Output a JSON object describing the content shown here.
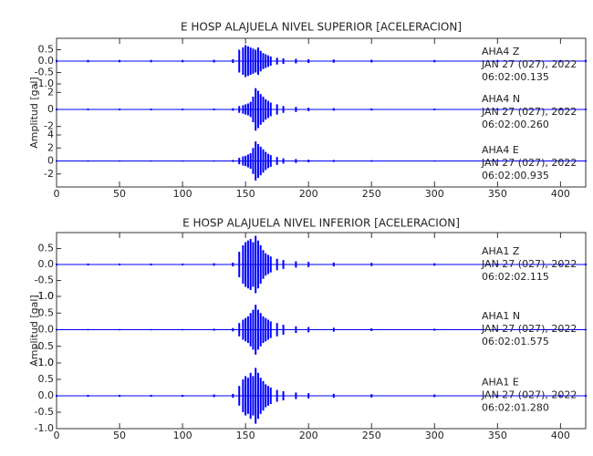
{
  "chart_data": [
    {
      "type": "seismogram",
      "title": "E HOSP ALAJUELA NIVEL SUPERIOR [ACELERACION]",
      "y_label": "Amplitud [gal]",
      "xlim": [
        0,
        420
      ],
      "xticks": [
        0,
        50,
        100,
        150,
        200,
        250,
        300,
        350,
        400
      ],
      "x": [
        0,
        25,
        50,
        75,
        100,
        125,
        140,
        145,
        148,
        150,
        152,
        154,
        156,
        158,
        160,
        162,
        164,
        166,
        168,
        170,
        175,
        180,
        190,
        200,
        220,
        250,
        300,
        350,
        400,
        420
      ],
      "traces": [
        {
          "station": "AHA4   Z",
          "date": "JAN 27 (027), 2022",
          "time": "06:02:00.135",
          "color": "#0000ff",
          "ylim": [
            -1.0,
            1.0
          ],
          "yticks": [
            {
              "value": -1.0,
              "label": "-1.0"
            },
            -0.5,
            {
              "value": 0,
              "label": "0.0"
            },
            0.5
          ],
          "values": [
            0.05,
            0.05,
            0.05,
            0.05,
            0.05,
            0.06,
            0.08,
            0.5,
            0.6,
            0.7,
            0.65,
            0.6,
            0.55,
            0.5,
            0.6,
            0.45,
            0.35,
            0.3,
            0.25,
            0.2,
            0.15,
            0.12,
            0.1,
            0.08,
            0.07,
            0.06,
            0.05,
            0.05,
            0.05,
            0.05
          ]
        },
        {
          "station": "AHA4   N",
          "date": "JAN 27 (027), 2022",
          "time": "06:02:00.260",
          "color": "#0000ff",
          "ylim": [
            -3,
            3
          ],
          "yticks": [
            -2,
            0,
            2
          ],
          "values": [
            0.1,
            0.1,
            0.1,
            0.1,
            0.1,
            0.1,
            0.15,
            0.4,
            0.5,
            0.6,
            0.7,
            0.9,
            1.5,
            2.5,
            2.2,
            1.8,
            1.5,
            1.2,
            1.0,
            0.8,
            0.6,
            0.4,
            0.3,
            0.2,
            0.15,
            0.12,
            0.1,
            0.1,
            0.1,
            0.1
          ]
        },
        {
          "station": "AHA4   E",
          "date": "JAN 27 (027), 2022",
          "time": "06:02:00.935",
          "color": "#0000ff",
          "ylim": [
            -4,
            4
          ],
          "yticks": [
            -2,
            0,
            2,
            4
          ],
          "values": [
            0.1,
            0.1,
            0.1,
            0.1,
            0.1,
            0.1,
            0.15,
            0.5,
            0.7,
            0.8,
            1.0,
            1.2,
            2.0,
            3.0,
            2.6,
            2.2,
            1.8,
            1.4,
            1.1,
            0.9,
            0.6,
            0.4,
            0.3,
            0.2,
            0.15,
            0.12,
            0.1,
            0.1,
            0.1,
            0.1
          ]
        }
      ]
    },
    {
      "type": "seismogram",
      "title": "E HOSP ALAJUELA NIVEL INFERIOR [ACELERACION]",
      "y_label": "Amplitud [gal]",
      "xlim": [
        0,
        420
      ],
      "xticks": [
        0,
        50,
        100,
        150,
        200,
        250,
        300,
        350,
        400
      ],
      "x": [
        0,
        25,
        50,
        75,
        100,
        125,
        140,
        145,
        148,
        150,
        152,
        154,
        156,
        158,
        160,
        162,
        164,
        166,
        168,
        170,
        175,
        180,
        190,
        200,
        220,
        250,
        300,
        350,
        400,
        420
      ],
      "traces": [
        {
          "station": "AHA1   Z",
          "date": "JAN 27 (027), 2022",
          "time": "06:02:02.115",
          "color": "#0000ff",
          "ylim": [
            -1.0,
            1.0
          ],
          "yticks": [
            {
              "value": -1.0,
              "label": "-1.0"
            },
            -0.5,
            {
              "value": 0,
              "label": "0.0"
            },
            0.5
          ],
          "values": [
            0.03,
            0.03,
            0.03,
            0.03,
            0.03,
            0.04,
            0.06,
            0.4,
            0.6,
            0.7,
            0.75,
            0.8,
            0.7,
            0.9,
            0.75,
            0.6,
            0.45,
            0.35,
            0.3,
            0.25,
            0.18,
            0.14,
            0.1,
            0.08,
            0.06,
            0.05,
            0.04,
            0.03,
            0.03,
            0.03
          ]
        },
        {
          "station": "AHA1   N",
          "date": "JAN 27 (027), 2022",
          "time": "06:02:01.575",
          "color": "#0000ff",
          "ylim": [
            -1.0,
            1.0
          ],
          "yticks": [
            {
              "value": -1.0,
              "label": "-1.0"
            },
            -0.5,
            {
              "value": 0,
              "label": "0.0"
            },
            0.5,
            {
              "value": 1.0,
              "label": "1.0"
            }
          ],
          "values": [
            0.02,
            0.02,
            0.02,
            0.02,
            0.02,
            0.03,
            0.05,
            0.2,
            0.3,
            0.35,
            0.4,
            0.5,
            0.6,
            0.75,
            0.6,
            0.5,
            0.4,
            0.35,
            0.3,
            0.25,
            0.2,
            0.15,
            0.1,
            0.08,
            0.06,
            0.04,
            0.03,
            0.02,
            0.02,
            0.02
          ]
        },
        {
          "station": "AHA1   E",
          "date": "JAN 27 (027), 2022",
          "time": "06:02:01.280",
          "color": "#0000ff",
          "ylim": [
            -1.0,
            1.0
          ],
          "yticks": [
            {
              "value": -1.0,
              "label": "-1.0"
            },
            -0.5,
            {
              "value": 0,
              "label": "0.0"
            },
            0.5,
            {
              "value": 1.0,
              "label": "1.0"
            }
          ],
          "values": [
            0.03,
            0.03,
            0.03,
            0.03,
            0.03,
            0.04,
            0.06,
            0.3,
            0.5,
            0.6,
            0.55,
            0.7,
            0.6,
            0.85,
            0.7,
            0.55,
            0.45,
            0.35,
            0.3,
            0.25,
            0.18,
            0.14,
            0.1,
            0.08,
            0.06,
            0.05,
            0.04,
            0.03,
            0.03,
            0.03
          ]
        }
      ]
    }
  ]
}
